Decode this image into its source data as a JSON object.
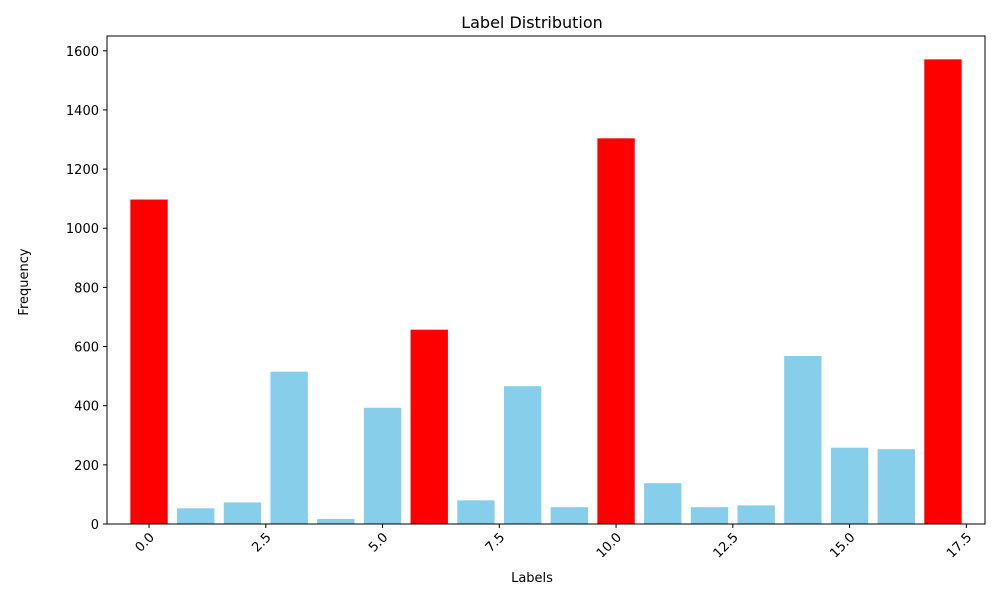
{
  "chart_data": {
    "type": "bar",
    "title": "Label Distribution",
    "xlabel": "Labels",
    "ylabel": "Frequency",
    "x": [
      0,
      1,
      2,
      3,
      4,
      5,
      6,
      7,
      8,
      9,
      10,
      11,
      12,
      13,
      14,
      15,
      16,
      17
    ],
    "values": [
      1097,
      53,
      73,
      515,
      17,
      393,
      657,
      80,
      466,
      57,
      1304,
      138,
      57,
      63,
      568,
      258,
      253,
      1571
    ],
    "bar_colors": [
      "#ff0000",
      "#87ceeb",
      "#87ceeb",
      "#87ceeb",
      "#87ceeb",
      "#87ceeb",
      "#ff0000",
      "#87ceeb",
      "#87ceeb",
      "#87ceeb",
      "#ff0000",
      "#87ceeb",
      "#87ceeb",
      "#87ceeb",
      "#87ceeb",
      "#87ceeb",
      "#87ceeb",
      "#ff0000"
    ],
    "xlim": [
      -0.9,
      17.9
    ],
    "ylim": [
      0,
      1650
    ],
    "x_ticks": [
      0.0,
      2.5,
      5.0,
      7.5,
      10.0,
      12.5,
      15.0,
      17.5
    ],
    "x_tick_labels": [
      "0.0",
      "2.5",
      "5.0",
      "7.5",
      "10.0",
      "12.5",
      "15.0",
      "17.5"
    ],
    "y_ticks": [
      0,
      200,
      400,
      600,
      800,
      1000,
      1200,
      1400,
      1600
    ],
    "y_tick_labels": [
      "0",
      "200",
      "400",
      "600",
      "800",
      "1000",
      "1200",
      "1400",
      "1600"
    ],
    "grid": false,
    "legend": "none"
  }
}
